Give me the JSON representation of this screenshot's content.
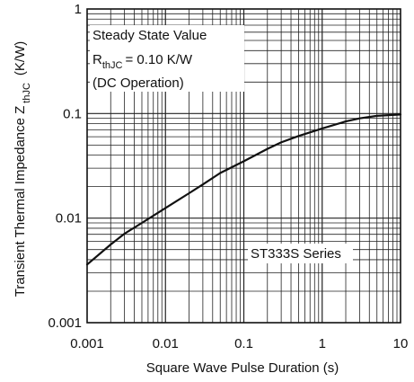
{
  "chart_data": {
    "type": "line",
    "x_scale": "log",
    "y_scale": "log",
    "xlim": [
      0.001,
      10
    ],
    "ylim": [
      0.001,
      1
    ],
    "grid": true,
    "x_ticks": [
      {
        "value": 0.001,
        "label": "0.001"
      },
      {
        "value": 0.01,
        "label": "0.01"
      },
      {
        "value": 0.1,
        "label": "0.1"
      },
      {
        "value": 1,
        "label": "1"
      },
      {
        "value": 10,
        "label": "10"
      }
    ],
    "y_ticks": [
      {
        "value": 0.001,
        "label": "0.001"
      },
      {
        "value": 0.01,
        "label": "0.01"
      },
      {
        "value": 0.1,
        "label": "0.1"
      },
      {
        "value": 1,
        "label": "1"
      }
    ],
    "xlabel": "Square Wave Pulse Duration (s)",
    "ylabel": {
      "main": "Transient Thermal Impedance Z",
      "sub": "thJC",
      "unit": "(K/W)"
    },
    "annotation": {
      "line1": "Steady State Value",
      "line2_main": "R",
      "line2_sub": "thJC",
      "line2_rest": "= 0.10 K/W",
      "line3": "(DC Operation)"
    },
    "series_label": "ST333S Series",
    "series": [
      {
        "x": [
          0.001,
          0.002,
          0.003,
          0.005,
          0.01,
          0.02,
          0.03,
          0.05,
          0.1,
          0.2,
          0.3,
          0.5,
          1,
          2,
          3,
          5,
          10
        ],
        "y": [
          0.0036,
          0.0056,
          0.0071,
          0.009,
          0.0125,
          0.0173,
          0.021,
          0.027,
          0.035,
          0.046,
          0.053,
          0.061,
          0.072,
          0.084,
          0.09,
          0.095,
          0.098
        ]
      }
    ]
  }
}
